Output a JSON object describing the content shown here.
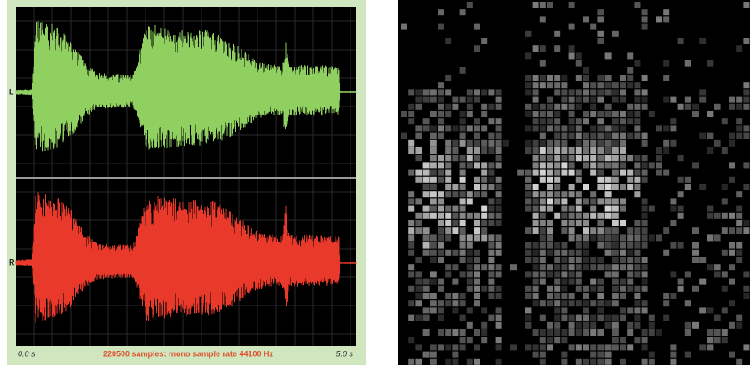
{
  "channels": {
    "left": "L",
    "right": "R"
  },
  "time_axis": {
    "start": "0.0 s",
    "end": "5.0 s"
  },
  "status": "220500 samples: mono sample rate 44100 Hz"
}
